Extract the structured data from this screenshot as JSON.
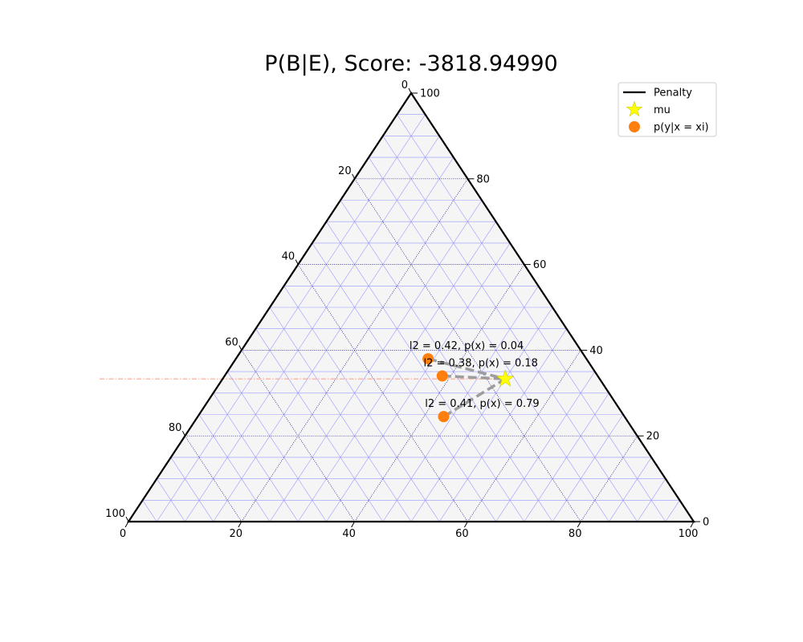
{
  "chart_data": {
    "type": "scatter",
    "subtype": "ternary",
    "title": "P(B|E), Score: -3818.94990",
    "scale": 100,
    "ticks": [
      0,
      20,
      40,
      60,
      80,
      100
    ],
    "gridlines": {
      "major_step": 20,
      "minor_step": 5,
      "major_color": "#000080",
      "minor_color": "#9999ff"
    },
    "background_color": "#f5f5f5",
    "legend": {
      "placement": "top-right",
      "entries": [
        {
          "label": "Penalty",
          "marker": "line",
          "color": "#000000"
        },
        {
          "label": "mu",
          "marker": "star",
          "color": "#ffff00"
        },
        {
          "label": "p(y|x = xi)",
          "marker": "circle",
          "color": "#ff7f0e"
        }
      ]
    },
    "mu": {
      "coords": [
        50,
        33.3,
        16.7
      ],
      "color": "#ffff00"
    },
    "points": [
      {
        "coords": [
          34,
          38,
          28
        ],
        "label": "l2 = 0.42, p(x) = 0.04"
      },
      {
        "coords": [
          38.5,
          34,
          27.5
        ],
        "label": "l2 = 0.38, p(x) = 0.18"
      },
      {
        "coords": [
          43.5,
          24.5,
          32
        ],
        "label": "l2 = 0.41, p(x) = 0.79"
      }
    ],
    "connector_style": {
      "color": "#999999",
      "dash": "dashed"
    },
    "penalty_line": {
      "value": 33.3,
      "color": "#ff9980"
    }
  }
}
